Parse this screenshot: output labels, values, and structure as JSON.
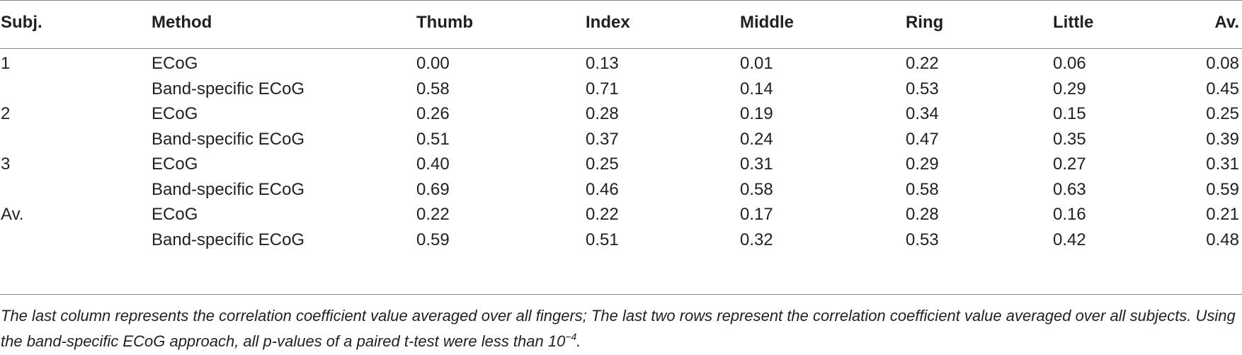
{
  "table": {
    "headers": {
      "subj": "Subj.",
      "method": "Method",
      "thumb": "Thumb",
      "index": "Index",
      "middle": "Middle",
      "ring": "Ring",
      "little": "Little",
      "av": "Av."
    },
    "rows": [
      {
        "subj": "1",
        "method": "ECoG",
        "thumb": "0.00",
        "index": "0.13",
        "middle": "0.01",
        "ring": "0.22",
        "little": "0.06",
        "av": "0.08"
      },
      {
        "subj": "",
        "method": "Band-specific ECoG",
        "thumb": "0.58",
        "index": "0.71",
        "middle": "0.14",
        "ring": "0.53",
        "little": "0.29",
        "av": "0.45"
      },
      {
        "subj": "2",
        "method": "ECoG",
        "thumb": "0.26",
        "index": "0.28",
        "middle": "0.19",
        "ring": "0.34",
        "little": "0.15",
        "av": "0.25"
      },
      {
        "subj": "",
        "method": "Band-specific ECoG",
        "thumb": "0.51",
        "index": "0.37",
        "middle": "0.24",
        "ring": "0.47",
        "little": "0.35",
        "av": "0.39"
      },
      {
        "subj": "3",
        "method": "ECoG",
        "thumb": "0.40",
        "index": "0.25",
        "middle": "0.31",
        "ring": "0.29",
        "little": "0.27",
        "av": "0.31"
      },
      {
        "subj": "",
        "method": "Band-specific ECoG",
        "thumb": "0.69",
        "index": "0.46",
        "middle": "0.58",
        "ring": "0.58",
        "little": "0.63",
        "av": "0.59"
      },
      {
        "subj": "Av.",
        "method": "ECoG",
        "thumb": "0.22",
        "index": "0.22",
        "middle": "0.17",
        "ring": "0.28",
        "little": "0.16",
        "av": "0.21"
      },
      {
        "subj": "",
        "method": "Band-specific ECoG",
        "thumb": "0.59",
        "index": "0.51",
        "middle": "0.32",
        "ring": "0.53",
        "little": "0.42",
        "av": "0.48"
      }
    ]
  },
  "footnote": {
    "text": "The last column represents the correlation coefficient value averaged over all fingers; The last two rows represent the correlation coefficient value averaged over all subjects. Using the band-specific ECoG approach, all p-values of a paired t-test were less than 10",
    "exponent": "−4",
    "end": "."
  }
}
